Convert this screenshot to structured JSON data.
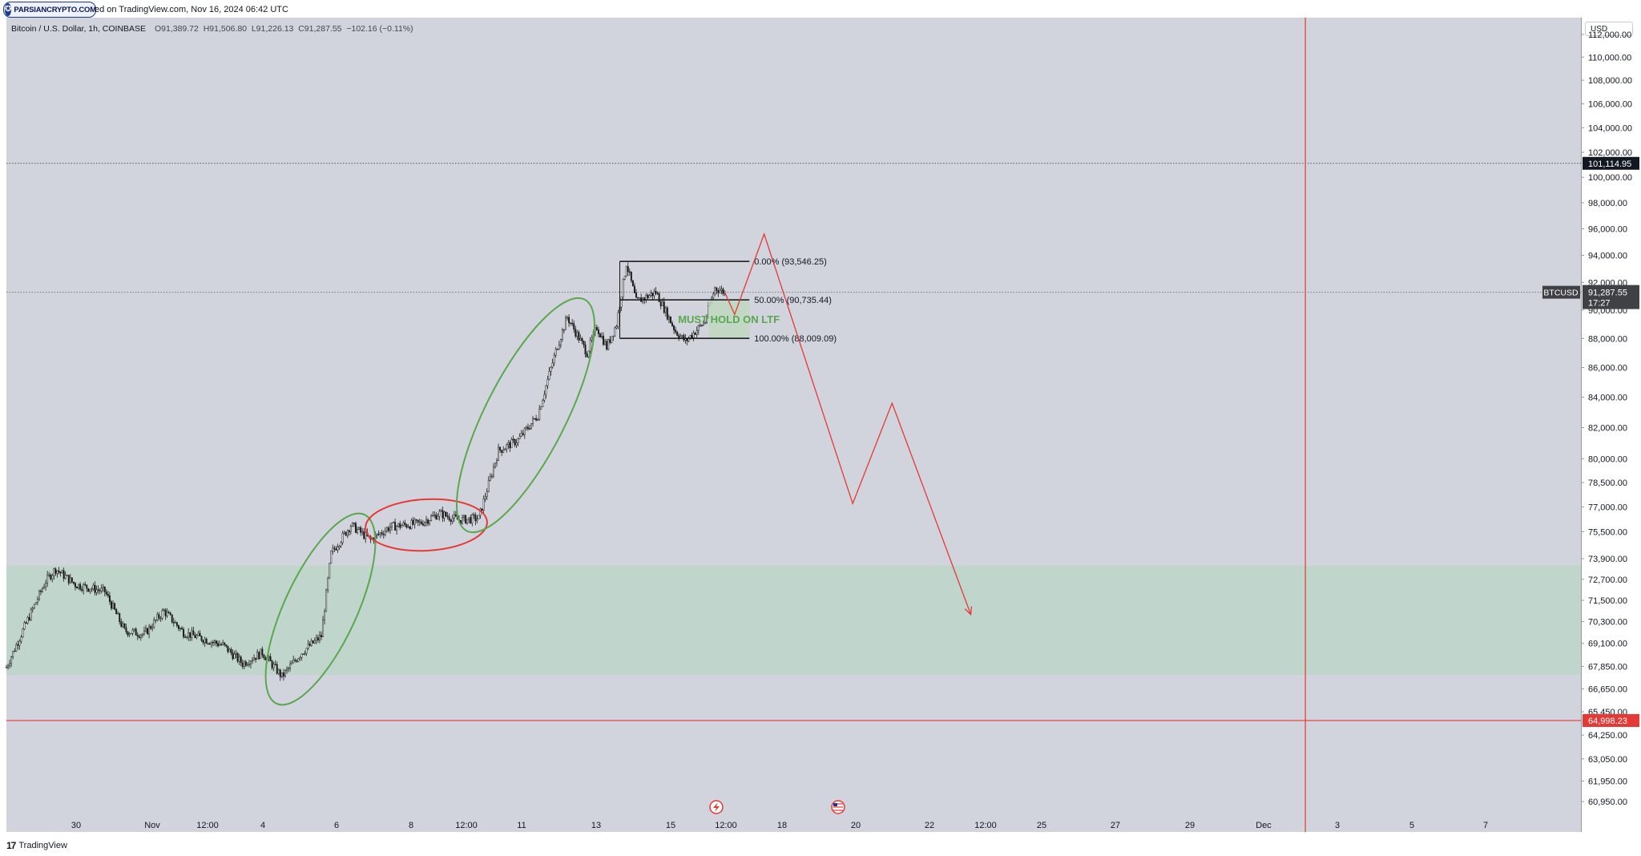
{
  "header": {
    "logo_text": "PARSIANCRYPTO.COM",
    "published": "ed on TradingView.com, Nov 16, 2024 06:42 UTC",
    "symbol_title": "Bitcoin / U.S. Dollar, 1h, COINBASE",
    "ohlc": "O91,389.72  H91,506.80  L91,226.13  C91,287.55  −102.16 (−0.11%)"
  },
  "currency": "USD",
  "footer": {
    "brand": "TradingView"
  },
  "colors": {
    "background": "#d1d4dc",
    "support_zone": "#c0d5cc",
    "hold_zone": "#bfd8c1",
    "green_annotation": "#5aa84e",
    "red_annotation": "#e53935",
    "candles": "#1b1b1b"
  },
  "chart_data": {
    "type": "candlestick",
    "symbol": "BTCUSD",
    "timeframe": "1h",
    "exchange": "COINBASE",
    "last_price": 91287.55,
    "last_price_label": "91,287.55",
    "countdown": "17:27",
    "symbol_tag": "BTCUSD",
    "x_ticks": [
      "30",
      "Nov",
      "12:00",
      "4",
      "6",
      "8",
      "12:00",
      "11",
      "13",
      "15",
      "12:00",
      "18",
      "20",
      "22",
      "12:00",
      "25",
      "27",
      "29",
      "Dec",
      "3",
      "5",
      "7"
    ],
    "y_ticks": [
      "112,000.00",
      "110,000.00",
      "108,000.00",
      "106,000.00",
      "104,000.00",
      "102,000.00",
      "100,000.00",
      "98,000.00",
      "96,000.00",
      "94,000.00",
      "92,000.00",
      "90,000.00",
      "88,000.00",
      "86,000.00",
      "84,000.00",
      "82,000.00",
      "80,000.00",
      "78,500.00",
      "77,000.00",
      "75,500.00",
      "73,900.00",
      "72,700.00",
      "71,500.00",
      "70,300.00",
      "69,100.00",
      "67,850.00",
      "66,650.00",
      "65,450.00",
      "64,250.00",
      "63,050.00",
      "61,950.00",
      "60,950.00"
    ],
    "y_scale": "log",
    "y_range": [
      59500,
      113500
    ],
    "x_range_days": [
      "Oct 29",
      "Dec 8"
    ],
    "horizontal_lines": [
      {
        "price": 101114.95,
        "label": "101,114.95",
        "style": "dotted",
        "color": "#555555"
      },
      {
        "price": 91287.55,
        "label": "91,287.55",
        "style": "dotted",
        "color": "#777777"
      },
      {
        "price": 64998.23,
        "label": "64,998.23",
        "style": "solid",
        "color": "#e53935"
      }
    ],
    "vertical_line": {
      "date": "Dec 1",
      "color": "#e53935"
    },
    "support_zone": {
      "top": 73500,
      "bottom": 67400
    },
    "fibonacci": [
      {
        "level": "0.00%",
        "price": 93546.25,
        "label": "0.00% (93,546.25)"
      },
      {
        "level": "50.00%",
        "price": 90735.44,
        "label": "50.00% (90,735.44)"
      },
      {
        "level": "100.00%",
        "price": 88009.09,
        "label": "100.00% (88,009.09)"
      }
    ],
    "hold_zone": {
      "top": 90735.44,
      "bottom": 88009.09,
      "label": "MUST HOLD ON LTF"
    },
    "price_path": [
      [
        "Oct 29 00:00",
        67800
      ],
      [
        "Oct 29 12:00",
        70200
      ],
      [
        "Oct 30 00:00",
        72600
      ],
      [
        "Oct 30 06:00",
        73300
      ],
      [
        "Oct 30 18:00",
        72400
      ],
      [
        "Oct 31 12:00",
        72000
      ],
      [
        "Nov 1 00:00",
        69800
      ],
      [
        "Nov 1 12:00",
        69600
      ],
      [
        "Nov 2 00:00",
        70900
      ],
      [
        "Nov 2 12:00",
        69700
      ],
      [
        "Nov 3 12:00",
        69000
      ],
      [
        "Nov 4 00:00",
        68000
      ],
      [
        "Nov 4 12:00",
        68600
      ],
      [
        "Nov 5 00:00",
        67300
      ],
      [
        "Nov 5 12:00",
        68600
      ],
      [
        "Nov 6 00:00",
        69500
      ],
      [
        "Nov 6 06:00",
        74200
      ],
      [
        "Nov 6 18:00",
        75900
      ],
      [
        "Nov 7 06:00",
        75000
      ],
      [
        "Nov 7 18:00",
        75800
      ],
      [
        "Nov 8 12:00",
        76000
      ],
      [
        "Nov 9 00:00",
        76600
      ],
      [
        "Nov 9 12:00",
        76200
      ],
      [
        "Nov 10 00:00",
        76300
      ],
      [
        "Nov 10 12:00",
        80500
      ],
      [
        "Nov 11 00:00",
        81200
      ],
      [
        "Nov 11 12:00",
        82800
      ],
      [
        "Nov 12 00:00",
        87500
      ],
      [
        "Nov 12 06:00",
        89500
      ],
      [
        "Nov 12 18:00",
        87000
      ],
      [
        "Nov 13 00:00",
        88800
      ],
      [
        "Nov 13 06:00",
        87400
      ],
      [
        "Nov 13 12:00",
        89000
      ],
      [
        "Nov 13 18:00",
        93400
      ],
      [
        "Nov 14 00:00",
        90600
      ],
      [
        "Nov 14 12:00",
        91300
      ],
      [
        "Nov 15 00:00",
        88500
      ],
      [
        "Nov 15 06:00",
        87800
      ],
      [
        "Nov 15 18:00",
        89200
      ],
      [
        "Nov 16 00:00",
        91600
      ],
      [
        "Nov 16 06:00",
        91287
      ]
    ],
    "projection": [
      [
        "Nov 16 06:00",
        91287
      ],
      [
        "Nov 16 12:00",
        89700
      ],
      [
        "Nov 17 06:00",
        95600
      ],
      [
        "Nov 19 12:00",
        77200
      ],
      [
        "Nov 20 12:00",
        83600
      ],
      [
        "Nov 22 12:00",
        70700
      ]
    ],
    "annotations": [
      {
        "shape": "ellipse",
        "color": "green",
        "around": "Nov 5 – Nov 6 breakout"
      },
      {
        "shape": "ellipse",
        "color": "red",
        "around": "Nov 7 – Nov 9 consolidation"
      },
      {
        "shape": "ellipse",
        "color": "green",
        "around": "Nov 10 – Nov 12 rally"
      }
    ],
    "event_icons": [
      "lightning-icon",
      "us-flag-icon"
    ]
  }
}
